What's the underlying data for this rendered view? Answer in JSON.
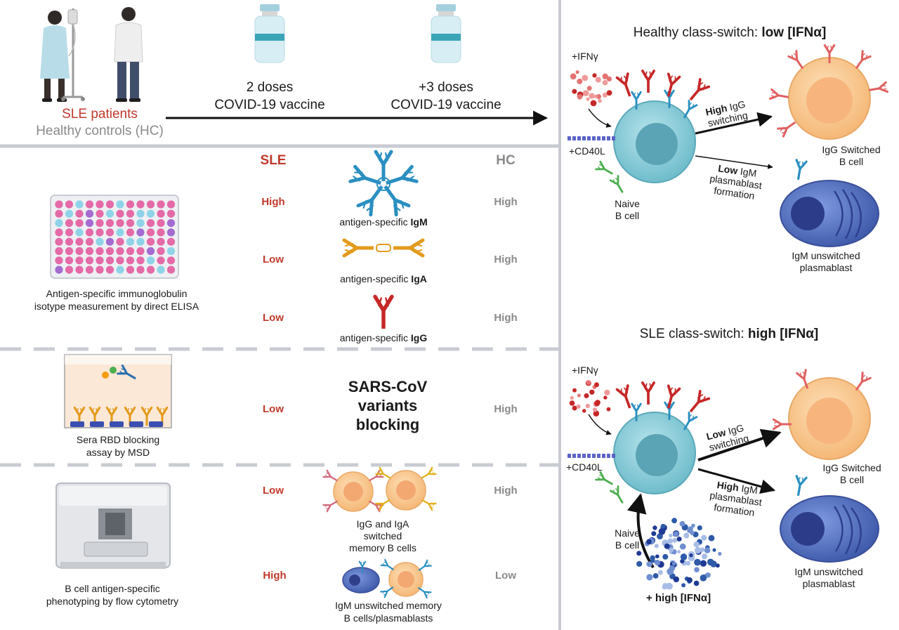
{
  "timeline": {
    "sle_patients": "SLE patients",
    "healthy_controls": "Healthy controls (HC)",
    "dose2_line1": "2 doses",
    "dose2_line2": "COVID-19 vaccine",
    "dose3_line1": "+3 doses",
    "dose3_line2": "COVID-19 vaccine"
  },
  "columns": {
    "sle": "SLE",
    "hc": "HC"
  },
  "elisa": {
    "caption_line1": "Antigen-specific immunoglobulin",
    "caption_line2": "isotype measurement by direct ELISA",
    "rows": [
      {
        "sle": "High",
        "hc": "High",
        "label_prefix": "antigen-specific ",
        "label_bold": "IgM",
        "color": "#2a8fc1"
      },
      {
        "sle": "Low",
        "hc": "High",
        "label_prefix": "antigen-specific ",
        "label_bold": "IgA",
        "color": "#e39a1c"
      },
      {
        "sle": "Low",
        "hc": "High",
        "label_prefix": "antigen-specific ",
        "label_bold": "IgG",
        "color": "#c62828"
      }
    ]
  },
  "rbd": {
    "caption_line1": "Sera RBD blocking",
    "caption_line2": "assay by MSD",
    "center_line1": "SARS-CoV",
    "center_line2": "variants",
    "center_line3": "blocking",
    "sle": "Low",
    "hc": "High"
  },
  "flow": {
    "caption_line1": "B cell antigen-specific",
    "caption_line2": "phenotyping by flow cytometry",
    "row1": {
      "sle": "Low",
      "hc": "High",
      "label_line1": "IgG and IgA",
      "label_line2": "switched",
      "label_line3": "memory B cells"
    },
    "row2": {
      "sle": "High",
      "hc": "Low",
      "label_line1": "IgM unswitched memory",
      "label_line2": "B cells/plasmablasts"
    }
  },
  "healthy_panel": {
    "title_prefix": "Healthy class-switch: ",
    "title_bold": "low [IFNα]",
    "ifng": "+IFNγ",
    "cd40l": "+CD40L",
    "naive_line1": "Naive",
    "naive_line2": "B cell",
    "igg_level": "High",
    "igg_rest": " IgG",
    "igg_line2": "switching",
    "igm_level": "Low",
    "igm_rest": " IgM",
    "igm_line2": "plasmablast",
    "igm_line3": "formation",
    "switched_line1": "IgG Switched",
    "switched_line2": "B cell",
    "unswitched_line1": "IgM unswitched",
    "unswitched_line2": "plasmablast"
  },
  "sle_panel": {
    "title_prefix": "SLE class-switch: ",
    "title_bold": "high [IFNα]",
    "ifng": "+IFNγ",
    "cd40l": "+CD40L",
    "naive_line1": "Naive",
    "naive_line2": "B cell",
    "igg_level": "Low",
    "igg_rest": " IgG",
    "igg_line2": "switching",
    "igm_level": "High",
    "igm_rest": " IgM",
    "igm_line2": "plasmablast",
    "igm_line3": "formation",
    "switched_line1": "IgG Switched",
    "switched_line2": "B cell",
    "unswitched_line1": "IgM unswitched",
    "unswitched_line2": "plasmablast",
    "high_ifna": "+ high [IFNα]"
  },
  "colors": {
    "sle_red": "#c0392b",
    "grey_text": "#8a8a8a",
    "igm_blue": "#2a8fc1",
    "iga_orange": "#e39a1c",
    "igg_red": "#c62828",
    "naive_cell": "#8fd0dc",
    "switched_cell": "#f9c98e",
    "plasmablast": "#4f6fc0",
    "divider": "#c8ccd2"
  }
}
